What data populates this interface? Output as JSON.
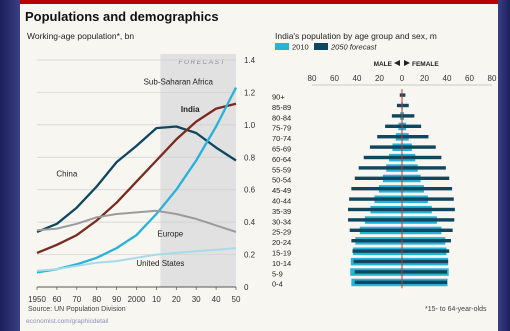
{
  "header": {
    "title": "Populations and demographics",
    "source": "Source: UN Population Division",
    "footnote": "*15- to 64-year-olds",
    "watermark": "economist.com/graphicdetail"
  },
  "colors": {
    "light_blue": "#27b2d8",
    "dark_teal": "#0f4660",
    "dark_red": "#7a2a1e",
    "grey": "#9b9b9b",
    "pale_blue": "#a7dbe9",
    "forecast_band": "#e1e1e1",
    "accent_red": "#b70000"
  },
  "chart_data": [
    {
      "type": "line",
      "title": "Working-age population*, bn",
      "x": [
        1950,
        1960,
        1970,
        1980,
        1990,
        2000,
        2010,
        2020,
        2030,
        2040,
        2050
      ],
      "xticks": [
        "1950",
        "60",
        "70",
        "80",
        "90",
        "2000",
        "10",
        "20",
        "30",
        "40",
        "50"
      ],
      "yticks": [
        "0",
        "0.2",
        "0.4",
        "0.6",
        "0.8",
        "1.0",
        "1.2",
        "1.4"
      ],
      "ylim": [
        0,
        1.4
      ],
      "forecast_label": "FORECAST",
      "forecast_from": 2012,
      "grid": true,
      "series": [
        {
          "name": "China",
          "color": "#0f4660",
          "values": [
            0.34,
            0.39,
            0.49,
            0.62,
            0.77,
            0.87,
            0.98,
            0.99,
            0.95,
            0.86,
            0.78
          ]
        },
        {
          "name": "India",
          "color": "#7a2a1e",
          "values": [
            0.21,
            0.26,
            0.32,
            0.41,
            0.52,
            0.65,
            0.78,
            0.91,
            1.02,
            1.1,
            1.13
          ]
        },
        {
          "name": "Sub-Saharan Africa",
          "color": "#27b2d8",
          "values": [
            0.09,
            0.11,
            0.14,
            0.18,
            0.24,
            0.32,
            0.45,
            0.6,
            0.78,
            0.99,
            1.23
          ]
        },
        {
          "name": "Europe",
          "color": "#9b9b9b",
          "values": [
            0.35,
            0.36,
            0.39,
            0.43,
            0.45,
            0.46,
            0.47,
            0.45,
            0.42,
            0.38,
            0.34
          ]
        },
        {
          "name": "United States",
          "color": "#a7dbe9",
          "values": [
            0.1,
            0.11,
            0.13,
            0.15,
            0.16,
            0.18,
            0.2,
            0.21,
            0.22,
            0.23,
            0.24
          ]
        }
      ]
    },
    {
      "type": "bar",
      "title": "India's population by age group and sex, m",
      "legend": [
        {
          "name": "2010",
          "color": "#27b2d8"
        },
        {
          "name": "2050 forecast",
          "color": "#0f4660"
        }
      ],
      "direction_labels": {
        "male": "MALE",
        "female": "FEMALE"
      },
      "xticks": [
        "80",
        "60",
        "40",
        "20",
        "0",
        "20",
        "40",
        "60",
        "80"
      ],
      "xlim": [
        -80,
        80
      ],
      "categories": [
        "90+",
        "85-89",
        "80-84",
        "75-79",
        "70-74",
        "65-69",
        "60-64",
        "55-59",
        "50-54",
        "45-49",
        "40-44",
        "35-39",
        "30-34",
        "25-29",
        "20-24",
        "15-19",
        "10-14",
        "5-9",
        "0-4"
      ],
      "series": [
        {
          "name": "2010 male",
          "values": [
            0.3,
            0.6,
            1.6,
            3.2,
            5.5,
            8.5,
            11.5,
            14,
            17,
            20.5,
            24.5,
            28,
            33,
            37.5,
            41.5,
            43.5,
            45.5,
            46,
            45
          ]
        },
        {
          "name": "2010 female",
          "values": [
            0.3,
            0.7,
            1.8,
            3.6,
            6,
            8.8,
            11.8,
            14,
            16.5,
            19.5,
            23,
            26.5,
            31,
            35,
            38.5,
            39.5,
            41,
            41.5,
            40.5
          ]
        },
        {
          "name": "2050 forecast male",
          "values": [
            2,
            4.5,
            9,
            15,
            22,
            28.5,
            34,
            38.5,
            42,
            45,
            47,
            48,
            48,
            46.5,
            45,
            44,
            43,
            42,
            42
          ]
        },
        {
          "name": "2050 forecast female",
          "values": [
            3,
            6,
            11,
            17,
            23.5,
            30,
            35,
            39,
            42,
            44.5,
            46,
            47,
            46.5,
            45,
            43.5,
            42,
            41,
            40,
            40
          ]
        }
      ]
    }
  ]
}
